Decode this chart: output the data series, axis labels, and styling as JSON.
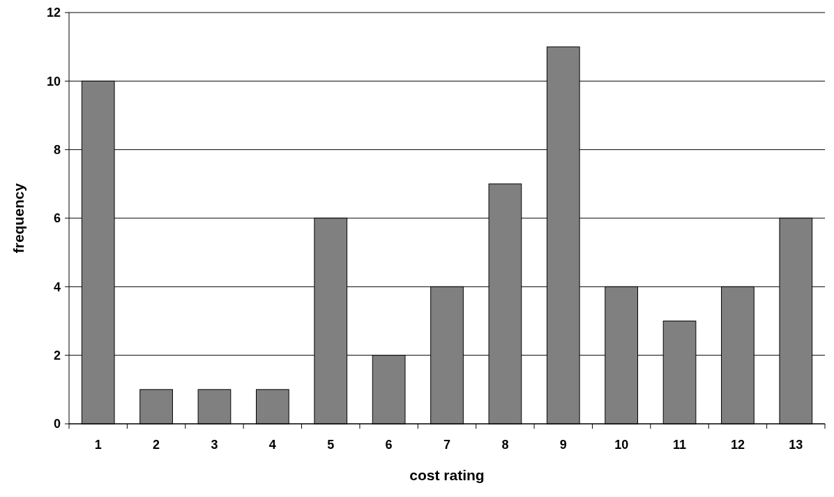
{
  "chart_data": {
    "type": "bar",
    "xlabel": "cost rating",
    "ylabel": "frequency",
    "categories": [
      "1",
      "2",
      "3",
      "4",
      "5",
      "6",
      "7",
      "8",
      "9",
      "10",
      "11",
      "12",
      "13"
    ],
    "values": [
      10,
      1,
      1,
      1,
      6,
      2,
      4,
      7,
      11,
      4,
      3,
      4,
      6
    ],
    "color": "#808080",
    "ylim": [
      0,
      12
    ],
    "yticks": [
      0,
      2,
      4,
      6,
      8,
      10,
      12
    ],
    "grid": "y"
  }
}
